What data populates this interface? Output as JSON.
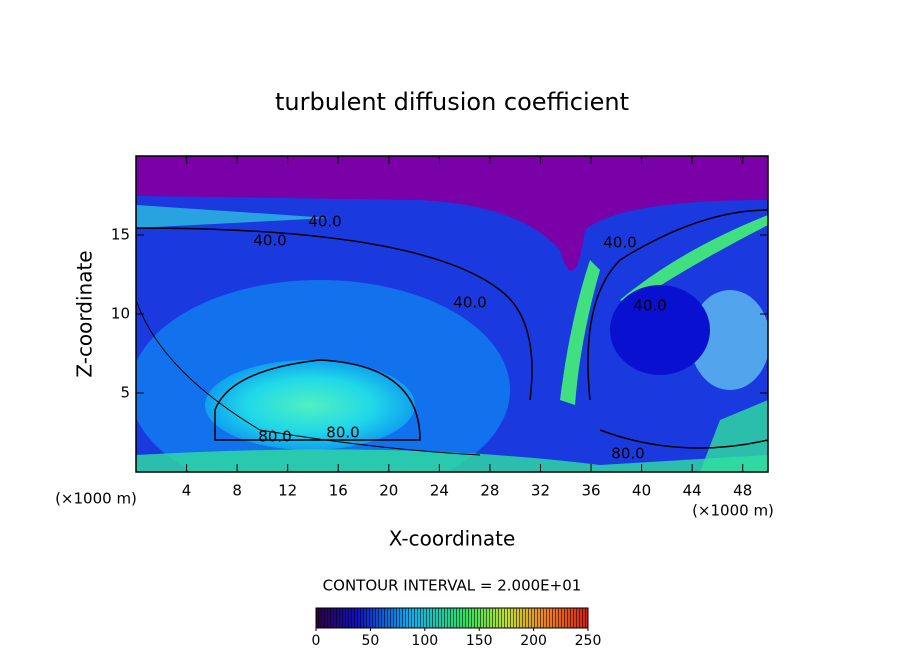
{
  "chart_data": {
    "type": "contour",
    "title": "turbulent diffusion coefficient",
    "x_label": "X-coordinate",
    "y_label": "Z-coordinate",
    "x_unit": "(×1000 m)",
    "contour_interval": "CONTOUR INTERVAL = 2.000E+01",
    "xlim": [
      0,
      50
    ],
    "xticks": [
      4,
      8,
      12,
      16,
      20,
      24,
      28,
      32,
      36,
      40,
      44,
      48
    ],
    "ylim": [
      0,
      20
    ],
    "yticks": [
      5,
      10,
      15
    ],
    "contour_labels": [
      {
        "value": 40,
        "label": "40.0"
      },
      {
        "value": 40,
        "label": "40.0"
      },
      {
        "value": 40,
        "label": "40.0"
      },
      {
        "value": 40,
        "label": "40.0"
      },
      {
        "value": 40,
        "label": "40.0"
      },
      {
        "value": 80,
        "label": "80.0"
      },
      {
        "value": 80,
        "label": "80.0"
      },
      {
        "value": 80,
        "label": "80.0"
      }
    ],
    "colorbar": {
      "lim": [
        0,
        250
      ],
      "ticks": [
        0,
        50,
        100,
        150,
        200,
        250
      ]
    }
  }
}
